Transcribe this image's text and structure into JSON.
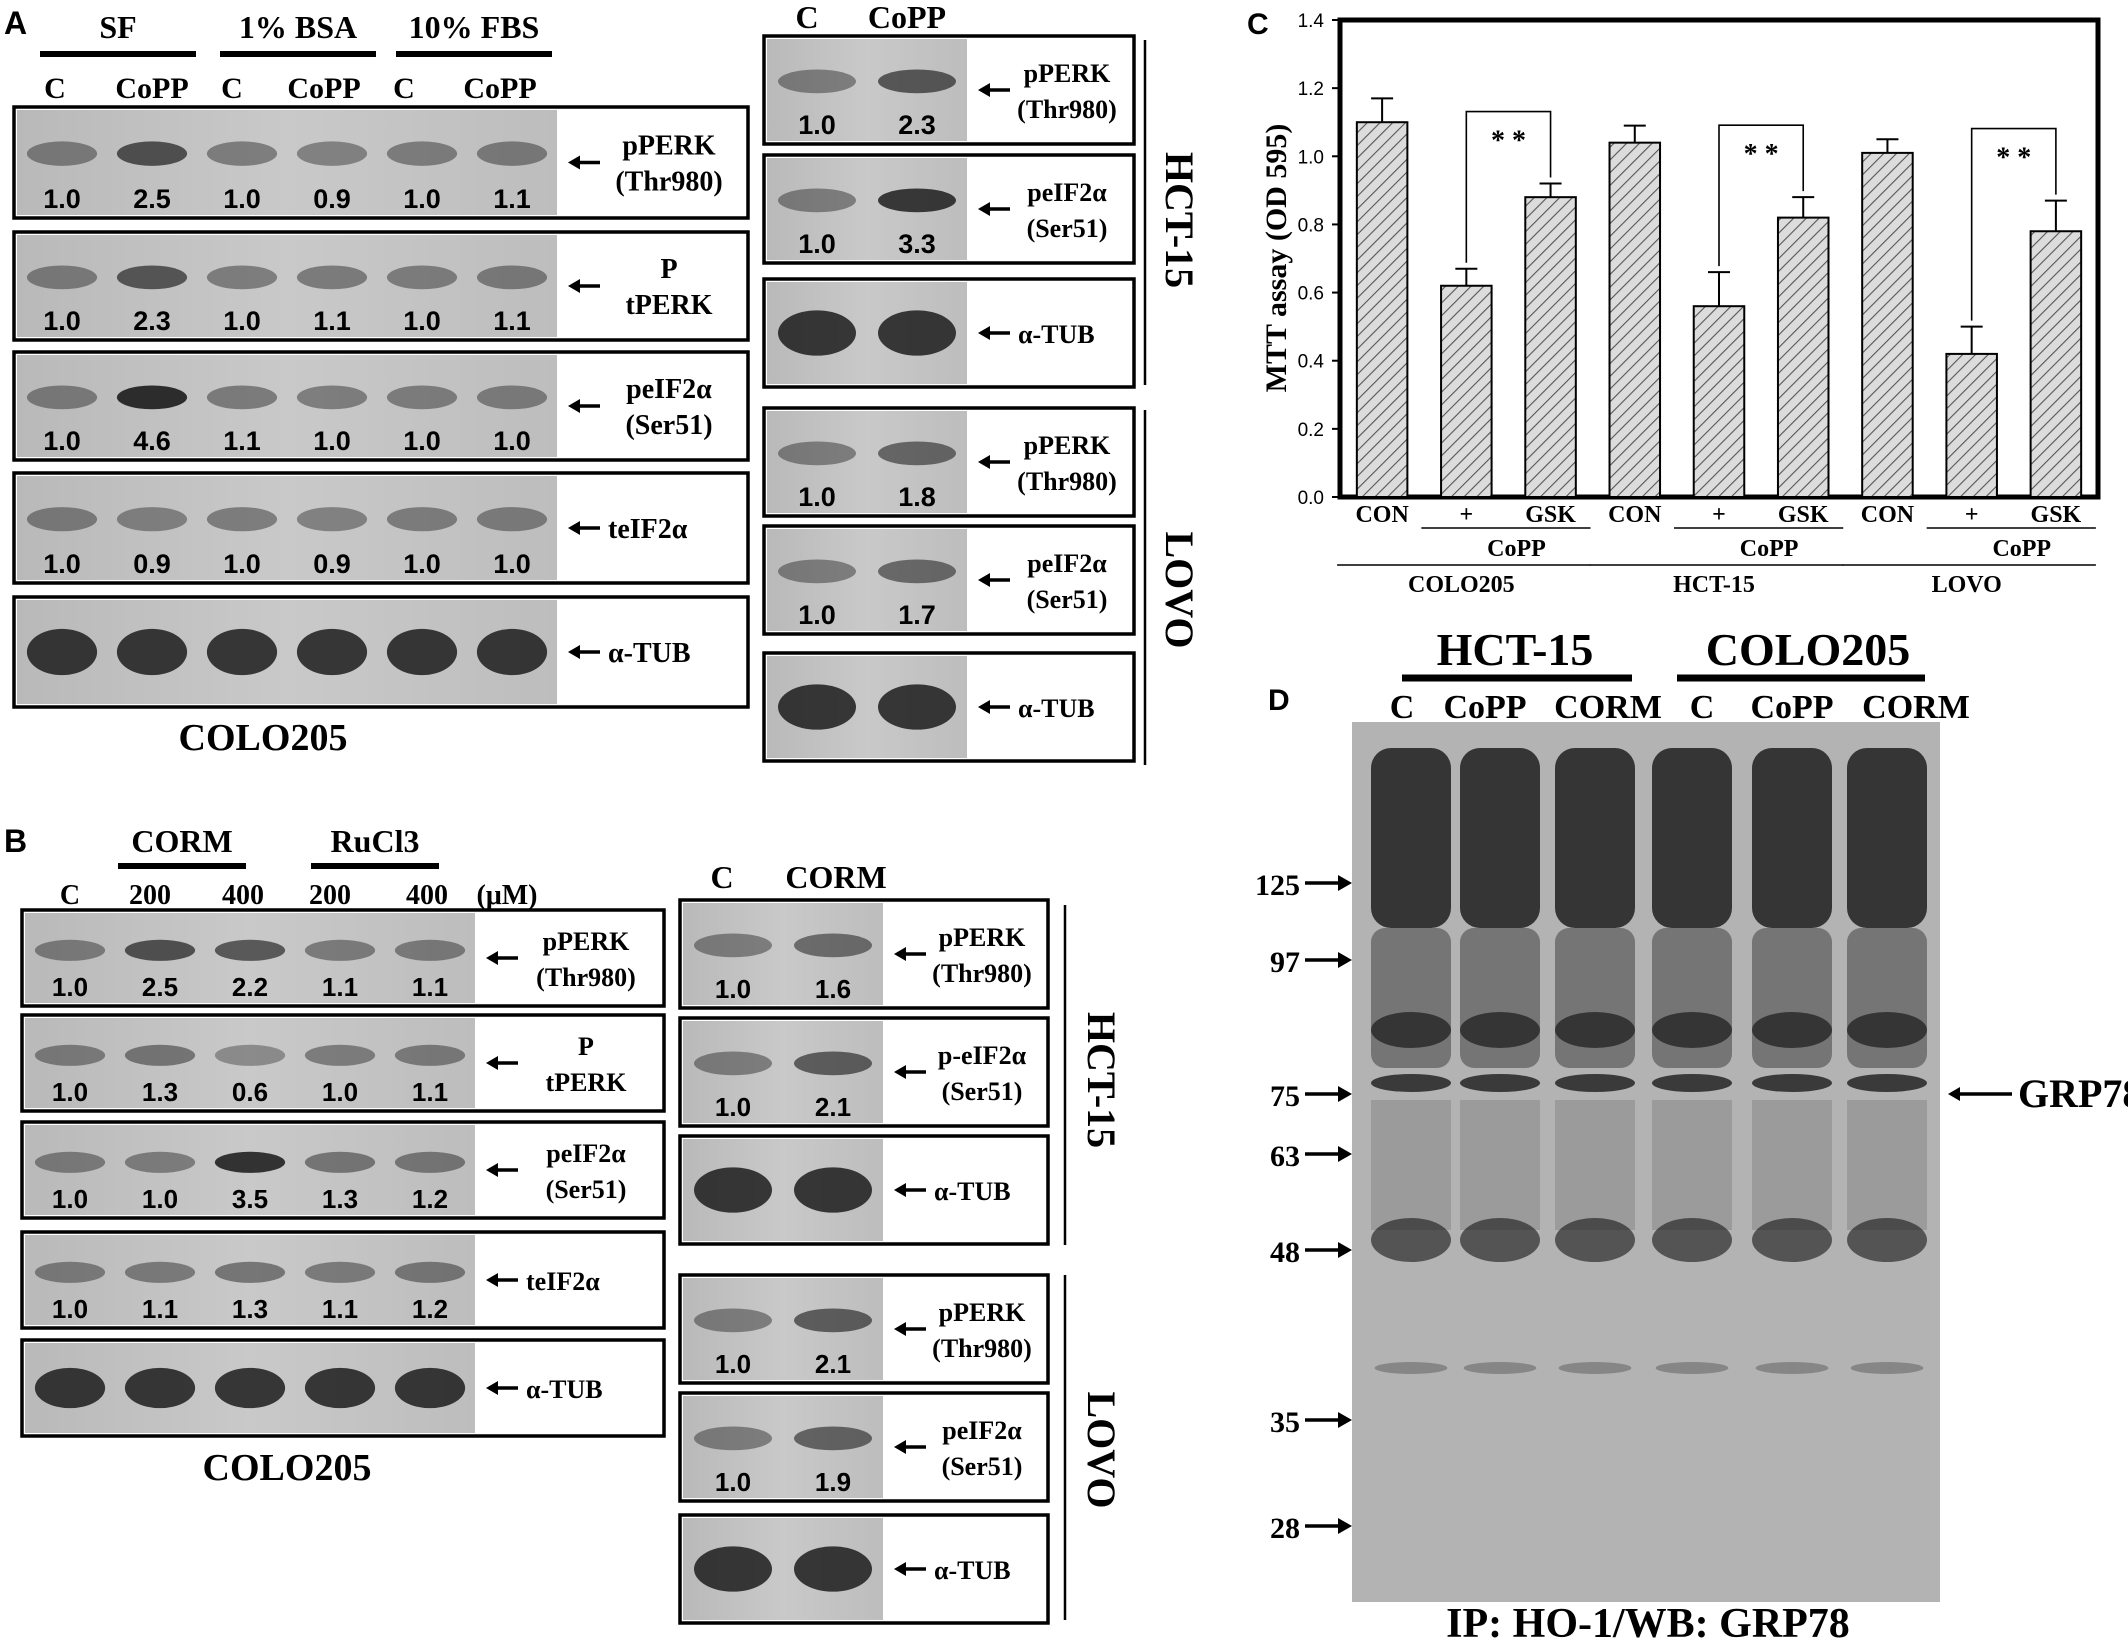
{
  "panel_a": {
    "letter": "A",
    "conditions": [
      "SF",
      "1% BSA",
      "10% FBS"
    ],
    "lanes": [
      "C",
      "CoPP",
      "C",
      "CoPP",
      "C",
      "CoPP"
    ],
    "rows": [
      {
        "label": [
          "pPERK",
          "(Thr980)"
        ],
        "values": [
          "1.0",
          "2.5",
          "1.0",
          "0.9",
          "1.0",
          "1.1"
        ]
      },
      {
        "label": [
          "P",
          "tPERK"
        ],
        "values": [
          "1.0",
          "2.3",
          "1.0",
          "1.1",
          "1.0",
          "1.1"
        ]
      },
      {
        "label": [
          "peIF2α",
          "(Ser51)"
        ],
        "values": [
          "1.0",
          "4.6",
          "1.1",
          "1.0",
          "1.0",
          "1.0"
        ]
      },
      {
        "label": [
          "teIF2α"
        ],
        "values": [
          "1.0",
          "0.9",
          "1.0",
          "0.9",
          "1.0",
          "1.0"
        ]
      },
      {
        "label": [
          "α-TUB"
        ],
        "values": []
      }
    ],
    "cell_line": "COLO205"
  },
  "panel_a_right": {
    "lanes": [
      "C",
      "CoPP"
    ],
    "groups": [
      {
        "cell_line": "HCT-15",
        "rows": [
          {
            "label": [
              "pPERK",
              "(Thr980)"
            ],
            "values": [
              "1.0",
              "2.3"
            ]
          },
          {
            "label": [
              "peIF2α",
              "(Ser51)"
            ],
            "values": [
              "1.0",
              "3.3"
            ]
          },
          {
            "label": [
              "α-TUB"
            ],
            "values": []
          }
        ]
      },
      {
        "cell_line": "LOVO",
        "rows": [
          {
            "label": [
              "pPERK",
              "(Thr980)"
            ],
            "values": [
              "1.0",
              "1.8"
            ]
          },
          {
            "label": [
              "peIF2α",
              "(Ser51)"
            ],
            "values": [
              "1.0",
              "1.7"
            ]
          },
          {
            "label": [
              "α-TUB"
            ],
            "values": []
          }
        ]
      }
    ]
  },
  "panel_b": {
    "letter": "B",
    "groups": [
      "CORM",
      "RuCl3"
    ],
    "lanes": [
      "C",
      "200",
      "400",
      "200",
      "400"
    ],
    "unit": "(μM)",
    "rows": [
      {
        "label": [
          "pPERK",
          "(Thr980)"
        ],
        "values": [
          "1.0",
          "2.5",
          "2.2",
          "1.1",
          "1.1"
        ]
      },
      {
        "label": [
          "P",
          "tPERK"
        ],
        "values": [
          "1.0",
          "1.3",
          "0.6",
          "1.0",
          "1.1"
        ]
      },
      {
        "label": [
          "peIF2α",
          "(Ser51)"
        ],
        "values": [
          "1.0",
          "1.0",
          "3.5",
          "1.3",
          "1.2"
        ]
      },
      {
        "label": [
          "teIF2α"
        ],
        "values": [
          "1.0",
          "1.1",
          "1.3",
          "1.1",
          "1.2"
        ]
      },
      {
        "label": [
          "α-TUB"
        ],
        "values": []
      }
    ],
    "cell_line": "COLO205"
  },
  "panel_b_right": {
    "lanes": [
      "C",
      "CORM"
    ],
    "groups": [
      {
        "cell_line": "HCT-15",
        "rows": [
          {
            "label": [
              "pPERK",
              "(Thr980)"
            ],
            "values": [
              "1.0",
              "1.6"
            ]
          },
          {
            "label": [
              "p-eIF2α",
              "(Ser51)"
            ],
            "values": [
              "1.0",
              "2.1"
            ]
          },
          {
            "label": [
              "α-TUB"
            ],
            "values": []
          }
        ]
      },
      {
        "cell_line": "LOVO",
        "rows": [
          {
            "label": [
              "pPERK",
              "(Thr980)"
            ],
            "values": [
              "1.0",
              "2.1"
            ]
          },
          {
            "label": [
              "peIF2α",
              "(Ser51)"
            ],
            "values": [
              "1.0",
              "1.9"
            ]
          },
          {
            "label": [
              "α-TUB"
            ],
            "values": []
          }
        ]
      }
    ]
  },
  "panel_c": {
    "letter": "C",
    "significance": "* *"
  },
  "chart_data": {
    "type": "bar",
    "title": "",
    "xlabel": "",
    "ylabel": "MTT assay (OD 595)",
    "ylim": [
      0.0,
      1.4
    ],
    "yticks": [
      "0.0",
      "0.2",
      "0.4",
      "0.6",
      "0.8",
      "1.0",
      "1.2",
      "1.4"
    ],
    "grid": false,
    "categories": [
      "CON",
      "+",
      "GSK",
      "CON",
      "+",
      "GSK",
      "CON",
      "+",
      "GSK"
    ],
    "values": [
      1.1,
      0.62,
      0.88,
      1.04,
      0.56,
      0.82,
      1.01,
      0.42,
      0.78
    ],
    "error": [
      0.07,
      0.05,
      0.04,
      0.05,
      0.1,
      0.06,
      0.04,
      0.08,
      0.09
    ],
    "treatment_label": "CoPP",
    "groups": [
      "COLO205",
      "HCT-15",
      "LOVO"
    ],
    "pattern": "diagonal hatch"
  },
  "panel_d": {
    "letter": "D",
    "groups": [
      "HCT-15",
      "COLO205"
    ],
    "lanes": [
      "C",
      "CoPP",
      "CORM",
      "C",
      "CoPP",
      "CORM"
    ],
    "markers": [
      "125",
      "97",
      "75",
      "63",
      "48",
      "35",
      "28"
    ],
    "band_label": "GRP78",
    "caption": "IP: HO-1/WB: GRP78"
  }
}
